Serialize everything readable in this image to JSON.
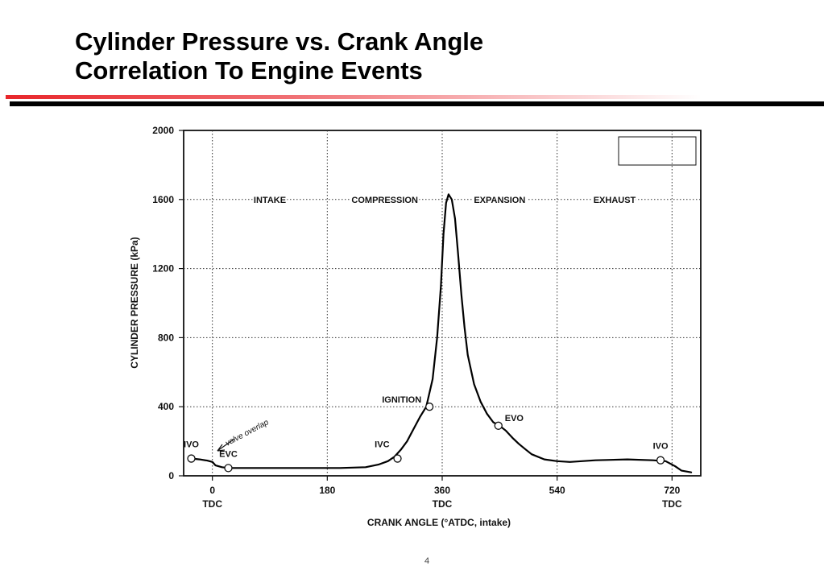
{
  "slide": {
    "title_line1": "Cylinder Pressure vs. Crank Angle",
    "title_line2": "Correlation To Engine Events",
    "page_number": "4"
  },
  "colors": {
    "accent_red": "#e8262b",
    "rule_black": "#000000",
    "plot_line": "#000000"
  },
  "chart_data": {
    "type": "line",
    "title": "",
    "xlabel": "CRANK ANGLE  (°ATDC, intake)",
    "ylabel": "CYLINDER  PRESSURE  (kPa)",
    "xlim": [
      -45,
      765
    ],
    "ylim": [
      0,
      2000
    ],
    "grid": true,
    "grid_style": "dotted",
    "x_ticks": [
      {
        "value": 0,
        "label": "0",
        "sublabel": "TDC"
      },
      {
        "value": 180,
        "label": "180",
        "sublabel": ""
      },
      {
        "value": 360,
        "label": "360",
        "sublabel": "TDC"
      },
      {
        "value": 540,
        "label": "540",
        "sublabel": ""
      },
      {
        "value": 720,
        "label": "720",
        "sublabel": "TDC"
      }
    ],
    "y_ticks": [
      0,
      400,
      800,
      1200,
      1600,
      2000
    ],
    "x_gridlines": [
      0,
      180,
      360,
      540,
      720
    ],
    "y_gridlines": [
      400,
      800,
      1200,
      1600
    ],
    "phases": [
      {
        "label": "INTAKE",
        "x": 90
      },
      {
        "label": "COMPRESSION",
        "x": 270
      },
      {
        "label": "EXPANSION",
        "x": 450
      },
      {
        "label": "EXHAUST",
        "x": 630
      }
    ],
    "phase_label_level": 1600,
    "series": [
      {
        "x": [
          -33,
          -20,
          -8,
          0,
          5,
          15,
          25,
          50,
          100,
          150,
          200,
          240,
          260,
          275,
          285,
          295,
          305,
          315,
          325,
          335,
          345,
          352,
          358,
          362,
          366,
          370,
          375,
          380,
          385,
          390,
          395,
          400,
          410,
          420,
          430,
          440,
          450,
          460,
          470,
          480,
          490,
          500,
          520,
          540,
          560,
          600,
          650,
          690,
          710,
          725,
          735,
          750
        ],
        "y": [
          100,
          95,
          88,
          80,
          60,
          50,
          45,
          45,
          45,
          45,
          45,
          50,
          65,
          85,
          110,
          150,
          200,
          270,
          340,
          400,
          560,
          800,
          1100,
          1400,
          1580,
          1630,
          1600,
          1490,
          1280,
          1050,
          860,
          700,
          530,
          430,
          360,
          310,
          290,
          260,
          220,
          185,
          155,
          125,
          95,
          85,
          80,
          90,
          95,
          90,
          85,
          55,
          30,
          20
        ]
      }
    ],
    "events": [
      {
        "label": "IVO",
        "x": -33,
        "y": 100
      },
      {
        "label": "EVC",
        "x": 25,
        "y": 45
      },
      {
        "label": "IVC",
        "x": 290,
        "y": 100
      },
      {
        "label": "IGNITION",
        "x": 340,
        "y": 400
      },
      {
        "label": "EVO",
        "x": 448,
        "y": 290
      },
      {
        "label": "IVO",
        "x": 702,
        "y": 90
      }
    ],
    "annotations": [
      {
        "text": "valve overlap",
        "handwritten": true
      }
    ]
  }
}
